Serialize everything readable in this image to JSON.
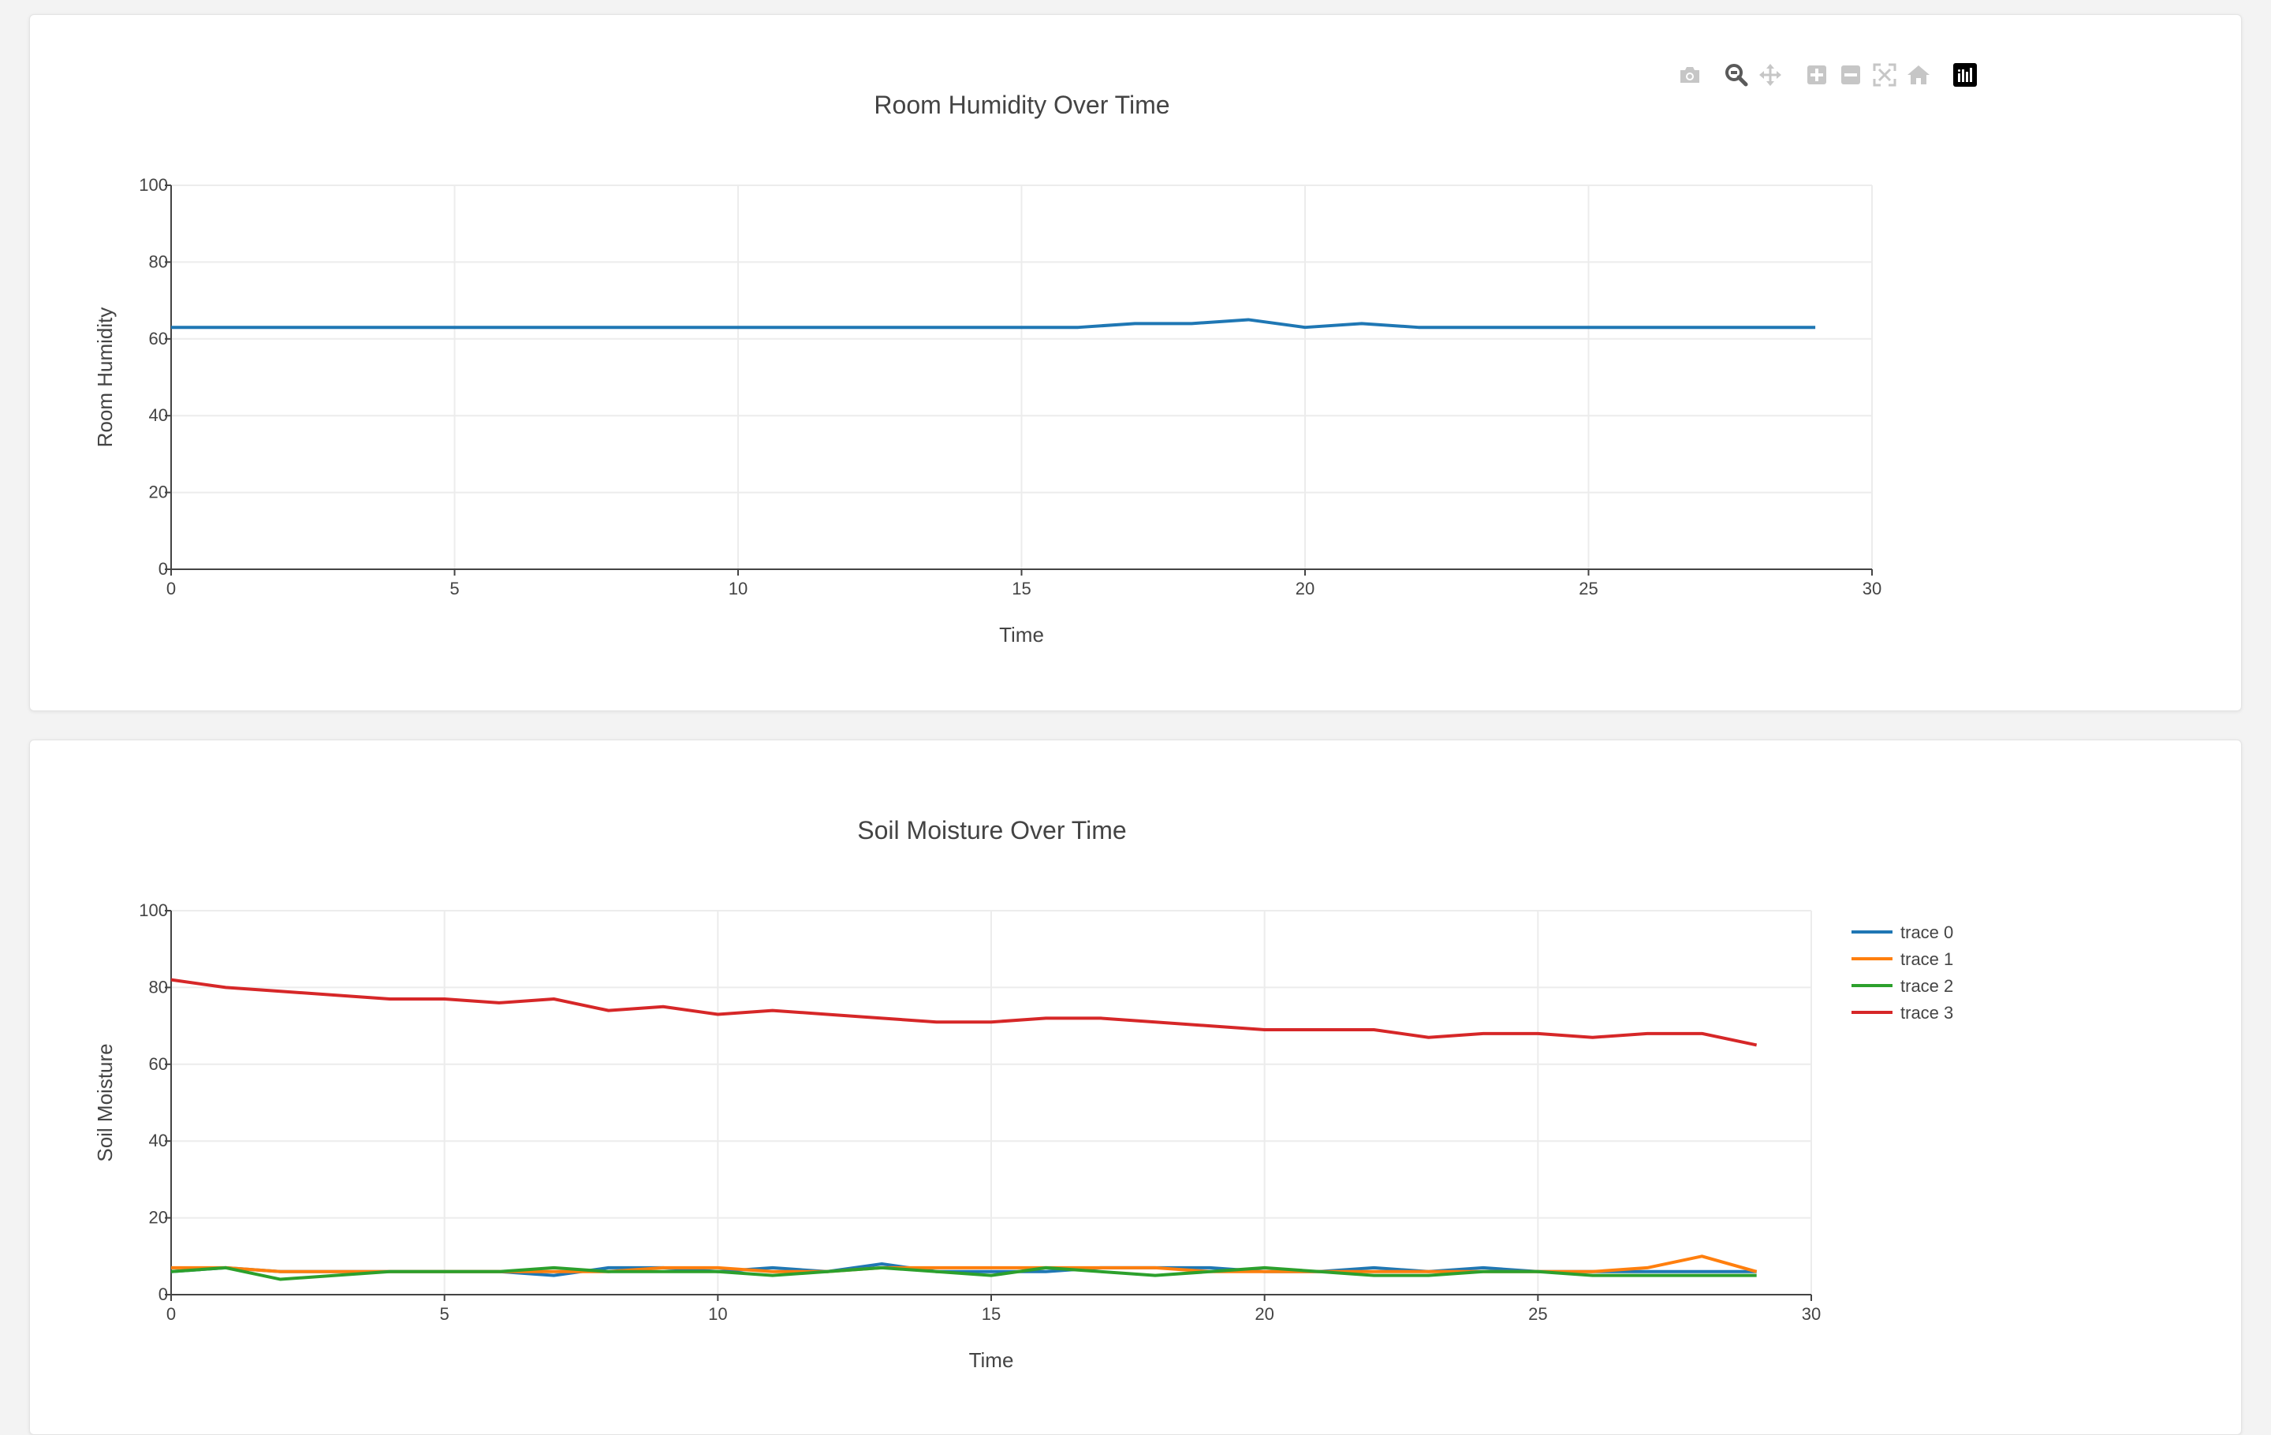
{
  "modebar": {
    "buttons": [
      "camera-icon",
      "zoom-icon",
      "pan-icon",
      "zoom-in-icon",
      "zoom-out-icon",
      "autoscale-icon",
      "reset-axes-icon",
      "plotly-logo-icon"
    ]
  },
  "chart_data": [
    {
      "type": "line",
      "title": "Room Humidity Over Time",
      "xlabel": "Time",
      "ylabel": "Room Humidity",
      "xlim": [
        0,
        30
      ],
      "ylim": [
        0,
        100
      ],
      "xticks": [
        "0",
        "5",
        "10",
        "15",
        "20",
        "25",
        "30"
      ],
      "yticks": [
        "0",
        "20",
        "40",
        "60",
        "80",
        "100"
      ],
      "grid": true,
      "legend": "none",
      "series": [
        {
          "color": "#1f77b4",
          "x": [
            0,
            1,
            2,
            3,
            4,
            5,
            6,
            7,
            8,
            9,
            10,
            11,
            12,
            13,
            14,
            15,
            16,
            17,
            18,
            19,
            20,
            21,
            22,
            23,
            24,
            25,
            26,
            27,
            28,
            29
          ],
          "values": [
            63,
            63,
            63,
            63,
            63,
            63,
            63,
            63,
            63,
            63,
            63,
            63,
            63,
            63,
            63,
            63,
            63,
            64,
            64,
            65,
            63,
            64,
            63,
            63,
            63,
            63,
            63,
            63,
            63,
            63
          ]
        }
      ]
    },
    {
      "type": "line",
      "title": "Soil Moisture Over Time",
      "xlabel": "Time",
      "ylabel": "Soil Moisture",
      "xlim": [
        0,
        30
      ],
      "ylim": [
        0,
        100
      ],
      "xticks": [
        "0",
        "5",
        "10",
        "15",
        "20",
        "25",
        "30"
      ],
      "yticks": [
        "0",
        "20",
        "40",
        "60",
        "80",
        "100"
      ],
      "grid": true,
      "legend": "top-right",
      "series": [
        {
          "name": "trace 0",
          "color": "#1f77b4",
          "x": [
            0,
            1,
            2,
            3,
            4,
            5,
            6,
            7,
            8,
            9,
            10,
            11,
            12,
            13,
            14,
            15,
            16,
            17,
            18,
            19,
            20,
            21,
            22,
            23,
            24,
            25,
            26,
            27,
            28,
            29
          ],
          "values": [
            6,
            7,
            6,
            6,
            6,
            6,
            6,
            5,
            7,
            7,
            6,
            7,
            6,
            8,
            6,
            6,
            6,
            7,
            7,
            7,
            6,
            6,
            7,
            6,
            7,
            6,
            6,
            6,
            6,
            6
          ]
        },
        {
          "name": "trace 1",
          "color": "#ff7f0e",
          "x": [
            0,
            1,
            2,
            3,
            4,
            5,
            6,
            7,
            8,
            9,
            10,
            11,
            12,
            13,
            14,
            15,
            16,
            17,
            18,
            19,
            20,
            21,
            22,
            23,
            24,
            25,
            26,
            27,
            28,
            29
          ],
          "values": [
            7,
            7,
            6,
            6,
            6,
            6,
            6,
            6,
            6,
            7,
            7,
            6,
            6,
            7,
            7,
            7,
            7,
            7,
            7,
            6,
            6,
            6,
            6,
            6,
            6,
            6,
            6,
            7,
            10,
            6
          ]
        },
        {
          "name": "trace 2",
          "color": "#2ca02c",
          "x": [
            0,
            1,
            2,
            3,
            4,
            5,
            6,
            7,
            8,
            9,
            10,
            11,
            12,
            13,
            14,
            15,
            16,
            17,
            18,
            19,
            20,
            21,
            22,
            23,
            24,
            25,
            26,
            27,
            28,
            29
          ],
          "values": [
            6,
            7,
            4,
            5,
            6,
            6,
            6,
            7,
            6,
            6,
            6,
            5,
            6,
            7,
            6,
            5,
            7,
            6,
            5,
            6,
            7,
            6,
            5,
            5,
            6,
            6,
            5,
            5,
            5,
            5
          ]
        },
        {
          "name": "trace 3",
          "color": "#d62728",
          "x": [
            0,
            1,
            2,
            3,
            4,
            5,
            6,
            7,
            8,
            9,
            10,
            11,
            12,
            13,
            14,
            15,
            16,
            17,
            18,
            19,
            20,
            21,
            22,
            23,
            24,
            25,
            26,
            27,
            28,
            29
          ],
          "values": [
            82,
            80,
            79,
            78,
            77,
            77,
            76,
            77,
            74,
            75,
            73,
            74,
            73,
            72,
            71,
            71,
            72,
            72,
            71,
            70,
            69,
            69,
            69,
            67,
            68,
            68,
            67,
            68,
            68,
            65
          ]
        }
      ]
    }
  ]
}
